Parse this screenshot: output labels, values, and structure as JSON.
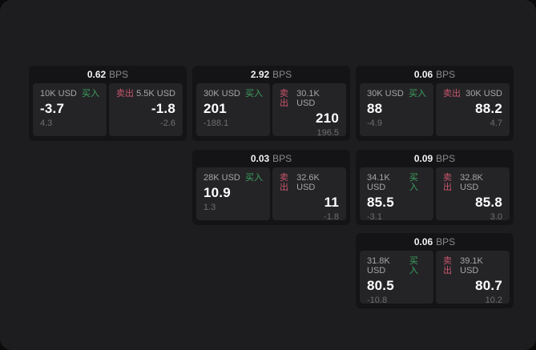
{
  "theme": {
    "buy_green": "#3da35e",
    "sell_red": "#c8566b",
    "window_bg": "#1d1d1f",
    "card_bg": "#141416",
    "panel_bg": "#242427"
  },
  "labels": {
    "bps_unit": "BPS",
    "buy": "买入",
    "sell": "卖出"
  },
  "cards": [
    {
      "bps": "0.62",
      "buy": {
        "amount": "10K USD",
        "value": "-3.7",
        "sub": "4.3"
      },
      "sell": {
        "amount": "5.5K USD",
        "value": "-1.8",
        "sub": "-2.6"
      }
    },
    {
      "bps": "2.92",
      "buy": {
        "amount": "30K USD",
        "value": "201",
        "sub": "-188.1"
      },
      "sell": {
        "amount": "30.1K USD",
        "value": "210",
        "sub": "196.5"
      }
    },
    {
      "bps": "0.06",
      "buy": {
        "amount": "30K USD",
        "value": "88",
        "sub": "-4.9"
      },
      "sell": {
        "amount": "30K USD",
        "value": "88.2",
        "sub": "4.7"
      }
    },
    {
      "bps": "0.03",
      "buy": {
        "amount": "28K USD",
        "value": "10.9",
        "sub": "1.3"
      },
      "sell": {
        "amount": "32.6K USD",
        "value": "11",
        "sub": "-1.8"
      }
    },
    {
      "bps": "0.09",
      "buy": {
        "amount": "34.1K USD",
        "value": "85.5",
        "sub": "-3.1"
      },
      "sell": {
        "amount": "32.8K USD",
        "value": "85.8",
        "sub": "3.0"
      }
    },
    {
      "bps": "0.06",
      "buy": {
        "amount": "31.8K USD",
        "value": "80.5",
        "sub": "-10.8"
      },
      "sell": {
        "amount": "39.1K USD",
        "value": "80.7",
        "sub": "10.2"
      }
    }
  ]
}
